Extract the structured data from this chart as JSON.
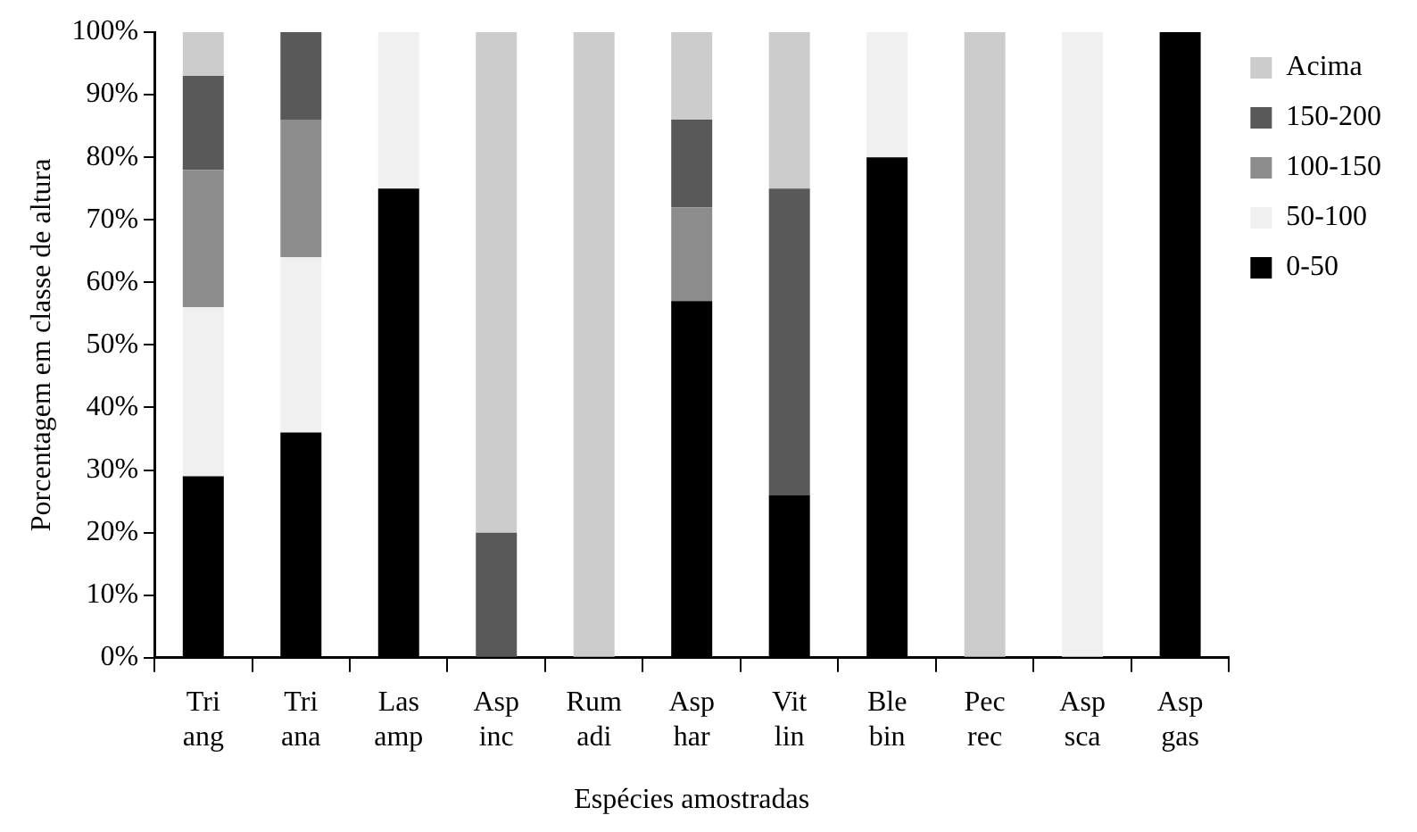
{
  "chart_data": {
    "type": "bar",
    "stacked": true,
    "xlabel": "Espécies amostradas",
    "ylabel": "Porcentagem em classe de altura",
    "categories": [
      "Tri ang",
      "Tri ana",
      "Las amp",
      "Asp inc",
      "Rum adi",
      "Asp har",
      "Vit lin",
      "Ble bin",
      "Pec rec",
      "Asp sca",
      "Asp gas"
    ],
    "series": [
      {
        "name": "0-50",
        "color": "#000000",
        "values": [
          29,
          36,
          75,
          0,
          0,
          57,
          26,
          80,
          0,
          0,
          100
        ]
      },
      {
        "name": "50-100",
        "color": "#f0f0f0",
        "values": [
          27,
          28,
          25,
          0,
          0,
          0,
          0,
          20,
          0,
          100,
          0
        ]
      },
      {
        "name": "100-150",
        "color": "#8c8c8c",
        "values": [
          22,
          22,
          0,
          0,
          0,
          15,
          0,
          0,
          0,
          0,
          0
        ]
      },
      {
        "name": "150-200",
        "color": "#595959",
        "values": [
          15,
          14,
          0,
          20,
          0,
          14,
          49,
          0,
          0,
          0,
          0
        ]
      },
      {
        "name": "Acima",
        "color": "#cccccc",
        "values": [
          7,
          0,
          0,
          80,
          100,
          14,
          25,
          0,
          100,
          0,
          0
        ]
      }
    ],
    "ylim": [
      0,
      100
    ],
    "yticks": [
      {
        "value": 0,
        "label": "0%"
      },
      {
        "value": 10,
        "label": "10%"
      },
      {
        "value": 20,
        "label": "20%"
      },
      {
        "value": 30,
        "label": "30%"
      },
      {
        "value": 40,
        "label": "40%"
      },
      {
        "value": 50,
        "label": "50%"
      },
      {
        "value": 60,
        "label": "60%"
      },
      {
        "value": 70,
        "label": "70%"
      },
      {
        "value": 80,
        "label": "80%"
      },
      {
        "value": 90,
        "label": "90%"
      },
      {
        "value": 100,
        "label": "100%"
      }
    ],
    "grid": false,
    "legend": "right"
  }
}
